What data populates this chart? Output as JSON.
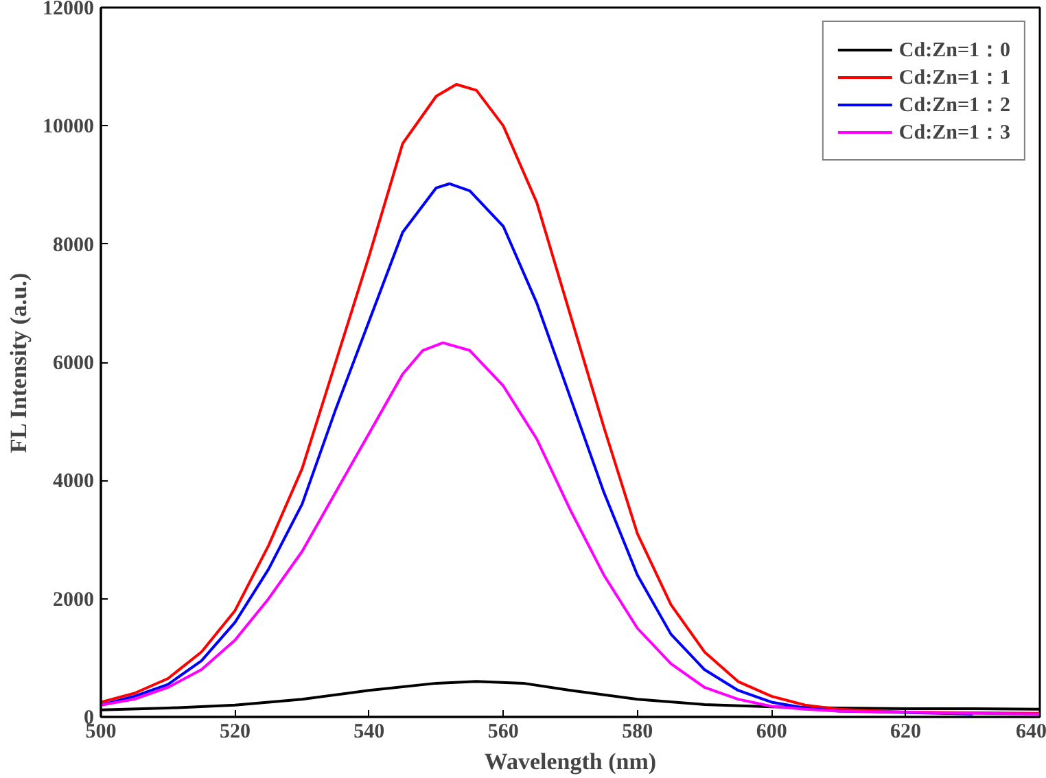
{
  "chart_data": {
    "type": "line",
    "xlabel": "Wavelength (nm)",
    "ylabel": "FL Intensity (a.u.)",
    "xlim": [
      500,
      640
    ],
    "ylim": [
      0,
      12000
    ],
    "xticks": [
      500,
      520,
      540,
      560,
      580,
      600,
      620,
      640
    ],
    "yticks": [
      0,
      2000,
      4000,
      6000,
      8000,
      10000,
      12000
    ],
    "grid": false,
    "legend": "top right",
    "marker": "none",
    "line_style": "solid",
    "series": [
      {
        "name": "Cd:Zn=1：0",
        "color": "#000000",
        "x": [
          500,
          510,
          520,
          530,
          540,
          550,
          556,
          563,
          570,
          580,
          590,
          600,
          610,
          620,
          630,
          640
        ],
        "values": [
          120,
          150,
          200,
          300,
          450,
          570,
          600,
          570,
          450,
          300,
          210,
          170,
          150,
          140,
          140,
          130
        ]
      },
      {
        "name": "Cd:Zn=1：1",
        "color": "#ff0000",
        "x": [
          500,
          505,
          510,
          515,
          520,
          525,
          530,
          535,
          540,
          545,
          550,
          553,
          556,
          560,
          565,
          570,
          575,
          580,
          585,
          590,
          595,
          600,
          605,
          610,
          620,
          640
        ],
        "values": [
          250,
          400,
          650,
          1100,
          1800,
          2900,
          4200,
          6000,
          7800,
          9700,
          10500,
          10700,
          10600,
          10000,
          8700,
          6800,
          4900,
          3100,
          1900,
          1100,
          600,
          350,
          200,
          130,
          80,
          60
        ]
      },
      {
        "name": "Cd:Zn=1：2",
        "color": "#0000ff",
        "x": [
          500,
          505,
          510,
          515,
          520,
          525,
          530,
          535,
          540,
          545,
          550,
          552,
          555,
          560,
          565,
          570,
          575,
          580,
          585,
          590,
          595,
          600,
          605,
          610,
          630
        ],
        "values": [
          200,
          350,
          550,
          950,
          1600,
          2500,
          3600,
          5200,
          6700,
          8200,
          8950,
          9020,
          8900,
          8300,
          7000,
          5400,
          3800,
          2400,
          1400,
          800,
          450,
          250,
          150,
          100,
          50
        ]
      },
      {
        "name": "Cd:Zn=1：3",
        "color": "#ff00ff",
        "x": [
          500,
          505,
          510,
          515,
          520,
          525,
          530,
          535,
          540,
          545,
          548,
          551,
          555,
          560,
          565,
          570,
          575,
          580,
          585,
          590,
          595,
          600,
          605,
          610,
          620,
          630,
          640
        ],
        "values": [
          200,
          300,
          500,
          800,
          1300,
          2000,
          2800,
          3800,
          4800,
          5800,
          6200,
          6330,
          6200,
          5600,
          4700,
          3500,
          2400,
          1500,
          900,
          500,
          300,
          180,
          130,
          100,
          80,
          60,
          50
        ]
      }
    ]
  }
}
